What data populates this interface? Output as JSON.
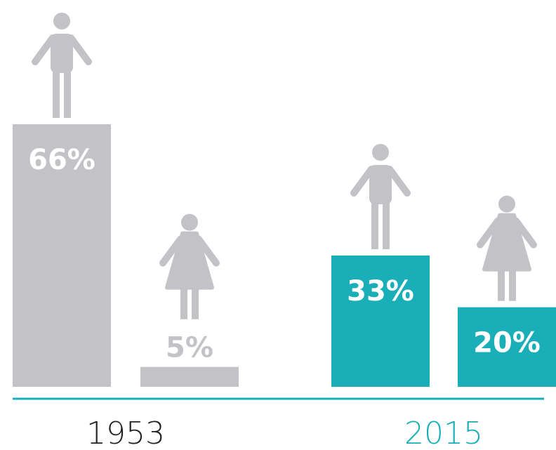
{
  "chart_data": {
    "type": "bar",
    "categories": [
      "1953",
      "2015"
    ],
    "colors": [
      "#c3c3c7",
      "#1aaeb8"
    ],
    "category_label_colors": [
      "#222222",
      "#1aaeb8"
    ],
    "series": [
      {
        "values": [
          66,
          33
        ],
        "value_labels": [
          "66%",
          "33%"
        ]
      },
      {
        "values": [
          5,
          20
        ],
        "value_labels": [
          "5%",
          "20%"
        ]
      }
    ]
  }
}
